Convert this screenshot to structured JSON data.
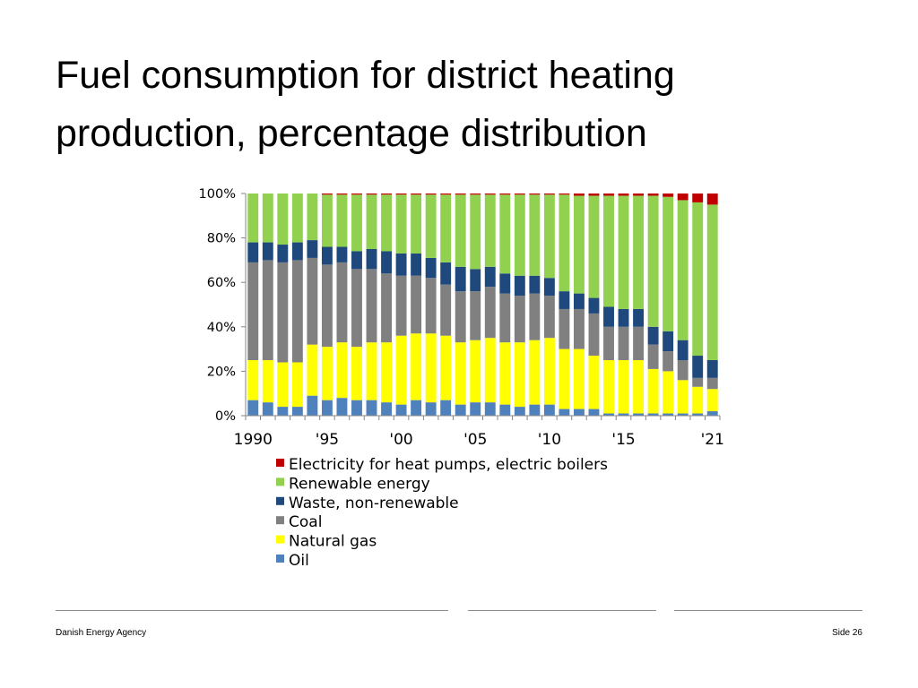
{
  "slide": {
    "title_line1": "Fuel consumption for district heating",
    "title_line2": "production, percentage distribution",
    "footer_left": "Danish Energy Agency",
    "footer_right": "Side 26"
  },
  "chart_data": {
    "type": "bar",
    "stacked": true,
    "percent": true,
    "ylim": [
      0,
      100
    ],
    "yticks": [
      "0%",
      "20%",
      "40%",
      "60%",
      "80%",
      "100%"
    ],
    "xtick_labels": [
      {
        "index": 0,
        "label": "1990"
      },
      {
        "index": 5,
        "label": "'95"
      },
      {
        "index": 10,
        "label": "'00"
      },
      {
        "index": 15,
        "label": "'05"
      },
      {
        "index": 20,
        "label": "'10"
      },
      {
        "index": 25,
        "label": "'15"
      },
      {
        "index": 31,
        "label": "'21"
      }
    ],
    "categories": [
      "1990",
      "1991",
      "1992",
      "1993",
      "1994",
      "1995",
      "1996",
      "1997",
      "1998",
      "1999",
      "2000",
      "2001",
      "2002",
      "2003",
      "2004",
      "2005",
      "2006",
      "2007",
      "2008",
      "2009",
      "2010",
      "2011",
      "2012",
      "2013",
      "2014",
      "2015",
      "2016",
      "2017",
      "2018",
      "2019",
      "2020",
      "2021"
    ],
    "series": [
      {
        "name": "Oil",
        "color": "#4f81bd",
        "values": [
          7,
          6,
          4,
          4,
          9,
          7,
          8,
          7,
          7,
          6,
          5,
          7,
          6,
          7,
          5,
          6,
          6,
          5,
          4,
          5,
          5,
          3,
          3,
          3,
          1,
          1,
          1,
          1,
          1,
          1,
          1,
          2
        ]
      },
      {
        "name": "Natural gas",
        "color": "#ffff00",
        "values": [
          18,
          19,
          20,
          20,
          23,
          24,
          25,
          24,
          26,
          27,
          31,
          30,
          31,
          29,
          28,
          28,
          29,
          28,
          29,
          29,
          30,
          27,
          27,
          24,
          24,
          24,
          24,
          20,
          19,
          15,
          12,
          10
        ]
      },
      {
        "name": "Coal",
        "color": "#808080",
        "values": [
          44,
          45,
          45,
          46,
          39,
          37,
          36,
          35,
          33,
          31,
          27,
          26,
          25,
          23,
          23,
          22,
          23,
          22,
          21,
          21,
          19,
          18,
          18,
          19,
          15,
          15,
          15,
          11,
          9,
          9,
          4,
          5
        ]
      },
      {
        "name": "Waste, non-renewable",
        "color": "#1f497d",
        "values": [
          9,
          8,
          8,
          8,
          8,
          8,
          7,
          8,
          9,
          10,
          10,
          10,
          9,
          10,
          11,
          10,
          9,
          9,
          9,
          8,
          8,
          8,
          7,
          7,
          9,
          8,
          8,
          8,
          9,
          9,
          10,
          8
        ]
      },
      {
        "name": "Renewable energy",
        "color": "#92d050",
        "values": [
          22,
          22,
          23,
          22,
          21,
          23.5,
          23.5,
          25.5,
          24.5,
          25.5,
          26.5,
          26.5,
          28.5,
          30.5,
          32.5,
          33.5,
          32.5,
          35.5,
          36.5,
          36.5,
          37.5,
          43.5,
          44,
          46,
          50,
          51,
          51,
          59,
          60.5,
          63,
          69,
          70
        ]
      },
      {
        "name": "Electricity for heat pumps, electric boilers",
        "color": "#c00000",
        "values": [
          0,
          0,
          0,
          0,
          0,
          0.5,
          0.5,
          0.5,
          0.5,
          0.5,
          0.5,
          0.5,
          0.5,
          0.5,
          0.5,
          0.5,
          0.5,
          0.5,
          0.5,
          0.5,
          0.5,
          0.5,
          1,
          1,
          1,
          1,
          1,
          1,
          1.5,
          3,
          4,
          5
        ]
      }
    ],
    "legend": {
      "position": "bottom",
      "order": [
        "Electricity for heat pumps, electric boilers",
        "Renewable energy",
        "Waste, non-renewable",
        "Coal",
        "Natural gas",
        "Oil"
      ]
    }
  }
}
